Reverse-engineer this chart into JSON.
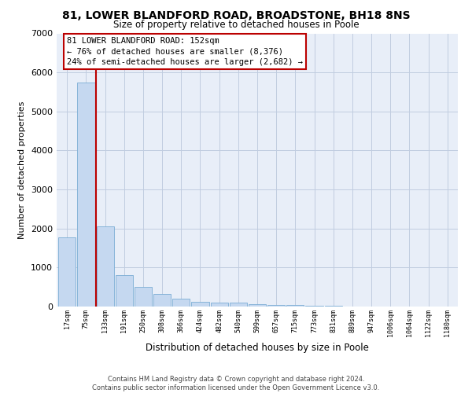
{
  "title": "81, LOWER BLANDFORD ROAD, BROADSTONE, BH18 8NS",
  "subtitle": "Size of property relative to detached houses in Poole",
  "xlabel": "Distribution of detached houses by size in Poole",
  "ylabel": "Number of detached properties",
  "bar_values": [
    1780,
    5750,
    2060,
    800,
    500,
    330,
    200,
    120,
    110,
    100,
    70,
    50,
    35,
    25,
    15,
    10,
    8,
    6,
    4,
    3,
    2
  ],
  "x_labels": [
    "17sqm",
    "75sqm",
    "133sqm",
    "191sqm",
    "250sqm",
    "308sqm",
    "366sqm",
    "424sqm",
    "482sqm",
    "540sqm",
    "599sqm",
    "657sqm",
    "715sqm",
    "773sqm",
    "831sqm",
    "889sqm",
    "947sqm",
    "1006sqm",
    "1064sqm",
    "1122sqm",
    "1180sqm"
  ],
  "bar_color": "#c5d8f0",
  "bar_edge_color": "#7aadd4",
  "bg_color": "#e8eef8",
  "grid_color": "#c0cce0",
  "redline_x": 1.5,
  "redline_color": "#bb0000",
  "annotation_text": "81 LOWER BLANDFORD ROAD: 152sqm\n← 76% of detached houses are smaller (8,376)\n24% of semi-detached houses are larger (2,682) →",
  "annotation_box_color": "#ffffff",
  "annotation_box_edge": "#bb0000",
  "ylim": [
    0,
    7000
  ],
  "yticks": [
    0,
    1000,
    2000,
    3000,
    4000,
    5000,
    6000,
    7000
  ],
  "footer_line1": "Contains HM Land Registry data © Crown copyright and database right 2024.",
  "footer_line2": "Contains public sector information licensed under the Open Government Licence v3.0."
}
